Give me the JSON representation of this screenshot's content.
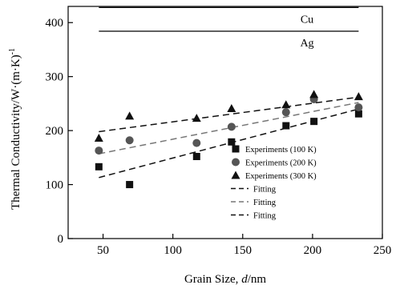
{
  "chart_data": {
    "type": "scatter",
    "xlabel": "Grain Size, ",
    "xlabel_italic": "d",
    "xlabel_unit": "/nm",
    "ylabel": "Thermal Conductivity/W·(m·K)",
    "ylabel_sup": "-1",
    "xlim": [
      25,
      250
    ],
    "ylim": [
      0,
      430
    ],
    "xticks": [
      50,
      100,
      150,
      200,
      250
    ],
    "yticks": [
      0,
      100,
      200,
      300,
      400
    ],
    "grid": false,
    "legend_position": "lower-right",
    "reference_lines": [
      {
        "label": "Cu",
        "y": 428,
        "x_start": 47,
        "x_end": 233
      },
      {
        "label": "Ag",
        "y": 384,
        "x_start": 47,
        "x_end": 233
      }
    ],
    "series": [
      {
        "name": "Experiments (100 K)",
        "marker": "square",
        "color": "#111111",
        "x": [
          47,
          69,
          117,
          142,
          181,
          201,
          233
        ],
        "y": [
          133,
          100,
          152,
          179,
          209,
          217,
          231
        ]
      },
      {
        "name": "Experiments (200 K)",
        "marker": "circle",
        "color": "#555555",
        "x": [
          47,
          69,
          117,
          142,
          181,
          201,
          233
        ],
        "y": [
          163,
          182,
          177,
          207,
          234,
          258,
          243
        ]
      },
      {
        "name": "Experiments (300 K)",
        "marker": "triangle",
        "color": "#111111",
        "x": [
          47,
          69,
          117,
          142,
          181,
          201,
          233
        ],
        "y": [
          186,
          227,
          223,
          241,
          248,
          267,
          263
        ]
      }
    ],
    "fits": [
      {
        "name": "Fitting",
        "color": "#111111",
        "x": [
          47,
          233
        ],
        "y": [
          113,
          240
        ]
      },
      {
        "name": "Fitting",
        "color": "#777777",
        "x": [
          47,
          233
        ],
        "y": [
          157,
          252
        ]
      },
      {
        "name": "Fitting",
        "color": "#111111",
        "x": [
          47,
          233
        ],
        "y": [
          198,
          262
        ]
      }
    ]
  }
}
